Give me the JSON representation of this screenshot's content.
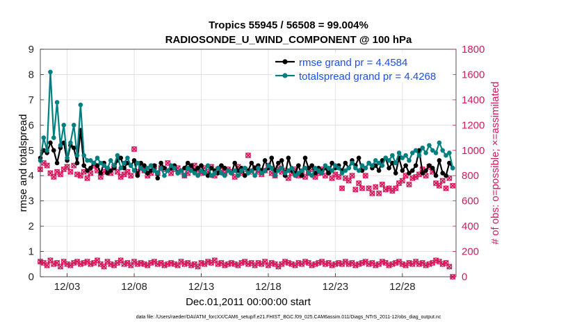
{
  "chart_data": {
    "type": "line",
    "title": "Tropics 55945 / 56508 = 99.004%",
    "subtitle": "RADIOSONDE_U_WIND_COMPONENT @ 100 hPa",
    "xlabel": "Dec.01,2011 00:00:00 start",
    "ylabel_left": "rmse and totalspread",
    "ylabel_right": "# of obs: o=possible; ×=assimilated",
    "footnote": "data file: /Users/raeder/DAI/ATM_forcXX/CAM6_setup/f.e21.FHIST_BGC.f09_025.CAM6assim.011/Diags_NTrS_2011-12/obs_diag_output.nc",
    "xlim": [
      1,
      32
    ],
    "ylim_left": [
      0,
      9
    ],
    "ylim_right": [
      0,
      1800
    ],
    "x_ticks": [
      3,
      8,
      13,
      18,
      23,
      28
    ],
    "x_tick_labels": [
      "12/03",
      "12/08",
      "12/13",
      "12/18",
      "12/23",
      "12/28"
    ],
    "y_left_ticks": [
      "0",
      "1",
      "2",
      "3",
      "4",
      "5",
      "6",
      "7",
      "8",
      "9"
    ],
    "y_right_ticks": [
      "0",
      "200",
      "400",
      "600",
      "800",
      "1000",
      "1200",
      "1400",
      "1600",
      "1800"
    ],
    "legend": [
      "rmse grand pr = 4.4584",
      "totalspread grand pr = 4.4268"
    ],
    "legend_position": "top-right",
    "colors": {
      "rmse": "#000000",
      "spread": "#008080",
      "obs": "#d6185c",
      "legend_text": "#1f4fdf"
    },
    "x": [
      1.0,
      1.25,
      1.5,
      1.75,
      2.0,
      2.25,
      2.5,
      2.75,
      3.0,
      3.25,
      3.5,
      3.75,
      4.0,
      4.25,
      4.5,
      4.75,
      5.0,
      5.25,
      5.5,
      5.75,
      6.0,
      6.25,
      6.5,
      6.75,
      7.0,
      7.25,
      7.5,
      7.75,
      8.0,
      8.25,
      8.5,
      8.75,
      9.0,
      9.25,
      9.5,
      9.75,
      10.0,
      10.25,
      10.5,
      10.75,
      11.0,
      11.25,
      11.5,
      11.75,
      12.0,
      12.25,
      12.5,
      12.75,
      13.0,
      13.25,
      13.5,
      13.75,
      14.0,
      14.25,
      14.5,
      14.75,
      15.0,
      15.25,
      15.5,
      15.75,
      16.0,
      16.25,
      16.5,
      16.75,
      17.0,
      17.25,
      17.5,
      17.75,
      18.0,
      18.25,
      18.5,
      18.75,
      19.0,
      19.25,
      19.5,
      19.75,
      20.0,
      20.25,
      20.5,
      20.75,
      21.0,
      21.25,
      21.5,
      21.75,
      22.0,
      22.25,
      22.5,
      22.75,
      23.0,
      23.25,
      23.5,
      23.75,
      24.0,
      24.25,
      24.5,
      24.75,
      25.0,
      25.25,
      25.5,
      25.75,
      26.0,
      26.25,
      26.5,
      26.75,
      27.0,
      27.25,
      27.5,
      27.75,
      28.0,
      28.25,
      28.5,
      28.75,
      29.0,
      29.25,
      29.5,
      29.75,
      30.0,
      30.25,
      30.5,
      30.75,
      31.0,
      31.25,
      31.5,
      31.75
    ],
    "series": [
      {
        "name": "rmse",
        "values": [
          4.7,
          5.0,
          4.9,
          5.3,
          5.0,
          4.5,
          5.1,
          5.3,
          4.6,
          5.2,
          5.1,
          4.5,
          5.8,
          4.4,
          4.2,
          4.3,
          4.5,
          4.4,
          4.1,
          4.5,
          4.1,
          4.2,
          4.3,
          4.6,
          4.7,
          4.3,
          4.5,
          4.4,
          4.6,
          4.0,
          4.5,
          4.4,
          4.1,
          4.2,
          4.4,
          3.9,
          4.5,
          4.3,
          4.2,
          4.3,
          4.4,
          4.1,
          4.2,
          4.3,
          4.5,
          4.4,
          4.2,
          4.3,
          4.4,
          4.1,
          4.0,
          4.3,
          4.2,
          4.1,
          4.4,
          4.3,
          4.2,
          4.1,
          4.5,
          4.2,
          4.3,
          4.0,
          4.2,
          4.5,
          4.3,
          4.4,
          4.2,
          4.6,
          4.3,
          4.7,
          4.2,
          4.5,
          4.6,
          4.0,
          4.7,
          4.2,
          4.1,
          4.4,
          4.0,
          4.7,
          4.3,
          4.4,
          4.1,
          4.3,
          4.2,
          4.3,
          4.1,
          4.5,
          4.3,
          4.4,
          4.2,
          4.5,
          4.3,
          4.6,
          4.4,
          4.7,
          4.2,
          4.3,
          4.5,
          4.3,
          4.4,
          4.2,
          4.6,
          4.7,
          4.3,
          4.5,
          4.1,
          4.7,
          4.2,
          4.4,
          4.1,
          4.2,
          4.4,
          5.0,
          4.1,
          4.2,
          4.4,
          4.3,
          4.0,
          4.6,
          4.1,
          4.0,
          4.5,
          4.3
        ]
      },
      {
        "name": "totalspread",
        "values": [
          4.6,
          5.5,
          5.0,
          8.1,
          5.5,
          6.9,
          5.2,
          6.0,
          4.7,
          5.3,
          6.0,
          4.8,
          6.8,
          4.8,
          4.6,
          4.6,
          4.5,
          4.7,
          4.5,
          4.4,
          4.3,
          4.6,
          4.4,
          4.8,
          4.3,
          4.5,
          4.7,
          4.4,
          4.2,
          4.5,
          4.3,
          4.2,
          4.3,
          4.4,
          4.2,
          4.1,
          4.3,
          4.0,
          4.2,
          4.4,
          4.3,
          4.1,
          4.2,
          4.0,
          4.3,
          4.2,
          4.1,
          4.0,
          4.2,
          4.1,
          4.4,
          4.0,
          4.1,
          4.3,
          4.1,
          4.0,
          4.2,
          4.1,
          4.2,
          4.0,
          4.2,
          4.3,
          4.1,
          4.2,
          4.0,
          4.3,
          4.1,
          4.2,
          4.4,
          4.3,
          4.0,
          4.2,
          4.3,
          4.1,
          4.2,
          4.3,
          4.0,
          4.1,
          4.2,
          4.3,
          4.1,
          4.0,
          4.3,
          4.2,
          4.1,
          4.4,
          4.3,
          4.2,
          4.4,
          4.3,
          4.1,
          4.2,
          4.3,
          4.5,
          4.3,
          4.2,
          4.4,
          4.3,
          4.5,
          4.4,
          4.6,
          4.5,
          4.4,
          4.7,
          4.6,
          4.8,
          4.5,
          4.9,
          4.7,
          4.8,
          4.6,
          4.9,
          5.0,
          4.8,
          5.1,
          4.9,
          5.2,
          5.0,
          4.9,
          5.3,
          5.0,
          4.8,
          4.9,
          4.3
        ]
      },
      {
        "name": "obs_possible",
        "values": [
          850,
          900,
          880,
          820,
          790,
          830,
          810,
          850,
          870,
          830,
          880,
          810,
          800,
          830,
          780,
          820,
          880,
          840,
          790,
          830,
          850,
          820,
          870,
          830,
          790,
          810,
          830,
          800,
          1010,
          830,
          860,
          840,
          800,
          820,
          870,
          820,
          860,
          850,
          900,
          820,
          850,
          860,
          830,
          800,
          820,
          860,
          880,
          840,
          820,
          860,
          830,
          870,
          800,
          850,
          860,
          820,
          850,
          830,
          790,
          870,
          820,
          850,
          960,
          830,
          860,
          830,
          810,
          840,
          880,
          820,
          800,
          860,
          830,
          840,
          780,
          820,
          850,
          800,
          830,
          790,
          820,
          850,
          790,
          820,
          850,
          800,
          830,
          780,
          810,
          790,
          700,
          780,
          760,
          800,
          690,
          740,
          700,
          800,
          700,
          660,
          710,
          660,
          730,
          690,
          700,
          680,
          700,
          740,
          760,
          800,
          730,
          780,
          790,
          810,
          850,
          800,
          870,
          830,
          740,
          720,
          760,
          700,
          780,
          720
        ]
      },
      {
        "name": "obs_assimilated",
        "values": [
          120,
          110,
          90,
          130,
          100,
          110,
          80,
          120,
          100,
          90,
          110,
          120,
          100,
          110,
          120,
          100,
          110,
          130,
          100,
          80,
          120,
          100,
          90,
          110,
          130,
          100,
          110,
          90,
          120,
          100,
          110,
          100,
          90,
          110,
          120,
          100,
          110,
          90,
          100,
          110,
          100,
          90,
          120,
          100,
          110,
          90,
          100,
          80,
          110,
          100,
          120,
          110,
          130,
          100,
          110,
          90,
          100,
          110,
          100,
          90,
          110,
          120,
          100,
          110,
          90,
          110,
          100,
          120,
          90,
          110,
          100,
          80,
          100,
          120,
          110,
          100,
          90,
          110,
          100,
          120,
          110,
          90,
          100,
          110,
          120,
          100,
          110,
          90,
          100,
          110,
          100,
          120,
          100,
          110,
          90,
          100,
          110,
          120,
          100,
          110,
          90,
          100,
          120,
          110,
          90,
          100,
          110,
          120,
          100,
          90,
          110,
          100,
          120,
          100,
          110,
          90,
          100,
          110,
          130,
          120,
          100,
          110,
          80,
          0
        ]
      }
    ]
  }
}
